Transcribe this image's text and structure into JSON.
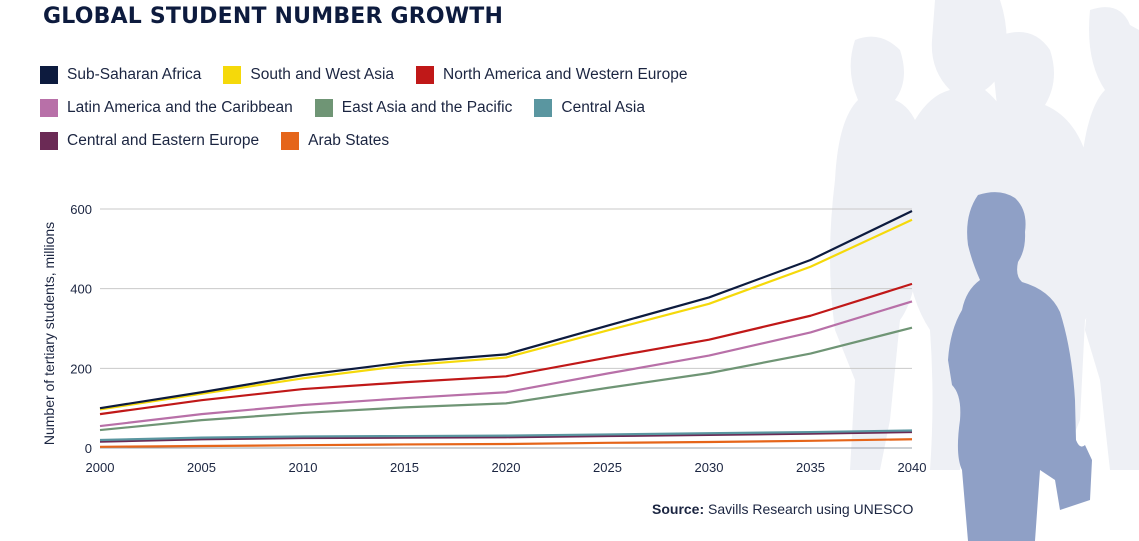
{
  "title": "GLOBAL STUDENT NUMBER GROWTH",
  "source": {
    "label": "Source:",
    "text": "Savills Research using UNESCO"
  },
  "chart_data": {
    "type": "line",
    "title": "GLOBAL STUDENT NUMBER GROWTH",
    "xlabel": "",
    "ylabel": "Number of tertiary students, millions",
    "xlim": [
      2000,
      2040
    ],
    "ylim": [
      0,
      600
    ],
    "x": [
      2000,
      2005,
      2010,
      2015,
      2020,
      2025,
      2030,
      2035,
      2040
    ],
    "x_ticks": [
      "2000",
      "2005",
      "2010",
      "2015",
      "2020",
      "2025",
      "2030",
      "2035",
      "2040"
    ],
    "y_ticks": [
      "0",
      "200",
      "400",
      "600"
    ],
    "y_tick_values": [
      0,
      200,
      400,
      600
    ],
    "grid": "horizontal",
    "legend_position": "top",
    "series": [
      {
        "name": "Sub-Saharan Africa",
        "color": "#0d1b3e",
        "values": [
          100,
          140,
          183,
          215,
          235,
          307,
          378,
          472,
          595
        ]
      },
      {
        "name": "South and West Asia",
        "color": "#f5d90a",
        "values": [
          97,
          136,
          175,
          207,
          227,
          295,
          362,
          455,
          573
        ]
      },
      {
        "name": "North America and Western Europe",
        "color": "#c01818",
        "values": [
          85,
          120,
          148,
          165,
          180,
          227,
          272,
          332,
          412
        ]
      },
      {
        "name": "Latin America and the Caribbean",
        "color": "#b870a8",
        "values": [
          55,
          85,
          108,
          125,
          140,
          187,
          232,
          290,
          368
        ]
      },
      {
        "name": "East Asia and the Pacific",
        "color": "#6f9575",
        "values": [
          45,
          70,
          88,
          102,
          112,
          151,
          188,
          237,
          302
        ]
      },
      {
        "name": "Central Asia",
        "color": "#5a96a0",
        "values": [
          20,
          26,
          29,
          30,
          31,
          34,
          37,
          40,
          44
        ]
      },
      {
        "name": "Central and Eastern Europe",
        "color": "#6b2a55",
        "values": [
          16,
          22,
          25,
          26,
          27,
          30,
          33,
          36,
          40
        ]
      },
      {
        "name": "Arab States",
        "color": "#e5651a",
        "values": [
          3,
          5,
          7,
          9,
          10,
          13,
          15,
          18,
          22
        ]
      }
    ]
  },
  "legend_rows": [
    [
      0,
      1,
      2
    ],
    [
      3,
      4,
      5
    ],
    [
      6,
      7
    ]
  ]
}
